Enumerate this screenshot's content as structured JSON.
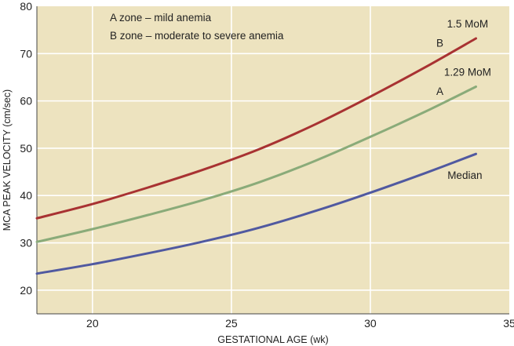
{
  "chart_data": {
    "type": "line",
    "title": "",
    "xlabel": "GESTATIONAL AGE (wk)",
    "ylabel": "MCA PEAK VELOCITY (cm/sec)",
    "xlim": [
      18,
      35
    ],
    "ylim": [
      15,
      80
    ],
    "x_ticks": [
      20,
      25,
      30,
      35
    ],
    "y_ticks": [
      20,
      30,
      40,
      50,
      60,
      70,
      80
    ],
    "grid": true,
    "background_color": "#ede3bf",
    "grid_color": "#ffffff",
    "legend_lines": [
      "A zone – mild anemia",
      "B zone – moderate to severe anemia"
    ],
    "series": [
      {
        "name": "Median",
        "color": "#5059a0",
        "x": [
          18,
          20,
          22,
          24,
          26,
          28,
          30,
          32,
          33.8
        ],
        "y": [
          23.5,
          25.5,
          27.8,
          30.3,
          33.2,
          36.7,
          40.6,
          44.8,
          48.8
        ]
      },
      {
        "name": "1.29 MoM",
        "color": "#8aab79",
        "x": [
          18,
          20,
          22,
          24,
          26,
          28,
          30,
          32,
          33.8
        ],
        "y": [
          30.2,
          32.9,
          35.9,
          39.1,
          42.8,
          47.3,
          52.4,
          57.8,
          63
        ]
      },
      {
        "name": "1.5 MoM",
        "color": "#a83232",
        "x": [
          18,
          20,
          22,
          24,
          26,
          28,
          30,
          32,
          33.8
        ],
        "y": [
          35.2,
          38.2,
          41.7,
          45.5,
          49.8,
          55,
          60.9,
          67.2,
          73.2
        ]
      }
    ],
    "annotations": [
      {
        "text": "1.5 MoM",
        "x": 33.5,
        "y": 75.5
      },
      {
        "text": "B",
        "x": 32.5,
        "y": 71.5
      },
      {
        "text": "1.29 MoM",
        "x": 33.5,
        "y": 65.3
      },
      {
        "text": "A",
        "x": 32.5,
        "y": 61.3
      },
      {
        "text": "Median",
        "x": 33.4,
        "y": 43.5
      }
    ]
  }
}
